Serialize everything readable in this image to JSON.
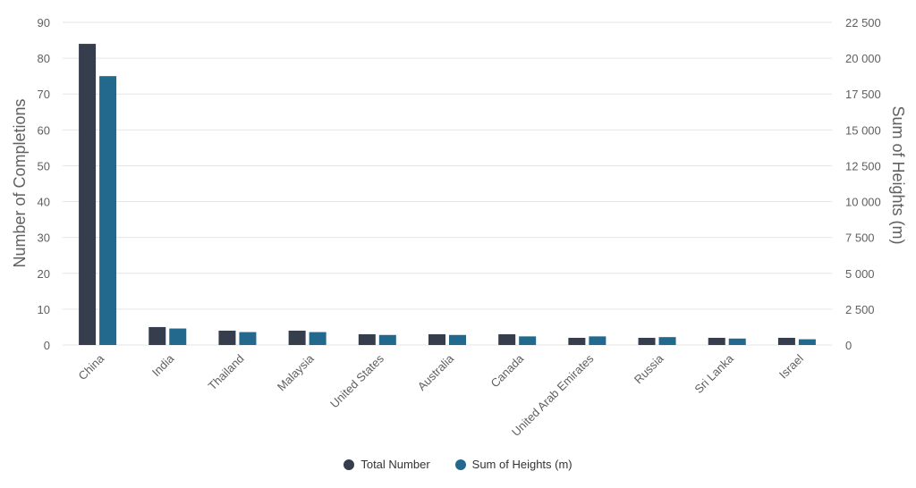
{
  "chart_data": {
    "type": "bar",
    "title": "",
    "categories": [
      "China",
      "India",
      "Thailand",
      "Malaysia",
      "United States",
      "Australia",
      "Canada",
      "United Arab Emirates",
      "Russia",
      "Sri Lanka",
      "Israel"
    ],
    "series": [
      {
        "name": "Total Number",
        "axis": "left",
        "color": "#363d4c",
        "values": [
          84,
          5,
          4,
          4,
          3,
          3,
          3,
          2,
          2,
          2,
          2
        ]
      },
      {
        "name": "Sum of Heights (m)",
        "axis": "right",
        "color": "#23698e",
        "values": [
          18750,
          1150,
          900,
          900,
          700,
          700,
          600,
          600,
          550,
          450,
          400
        ]
      }
    ],
    "y_left": {
      "label": "Number of Completions",
      "range": [
        0,
        90
      ],
      "ticks": [
        0,
        10,
        20,
        30,
        40,
        50,
        60,
        70,
        80,
        90
      ],
      "tick_labels": [
        "0",
        "10",
        "20",
        "30",
        "40",
        "50",
        "60",
        "70",
        "80",
        "90"
      ]
    },
    "y_right": {
      "label": "Sum of Heights (m)",
      "range": [
        0,
        22500
      ],
      "ticks": [
        0,
        2500,
        5000,
        7500,
        10000,
        12500,
        15000,
        17500,
        20000,
        22500
      ],
      "tick_labels": [
        "0",
        "2 500",
        "5 000",
        "7 500",
        "10 000",
        "12 500",
        "15 000",
        "17 500",
        "20 000",
        "22 500"
      ]
    },
    "grid": true,
    "legend_position": "bottom-center"
  }
}
